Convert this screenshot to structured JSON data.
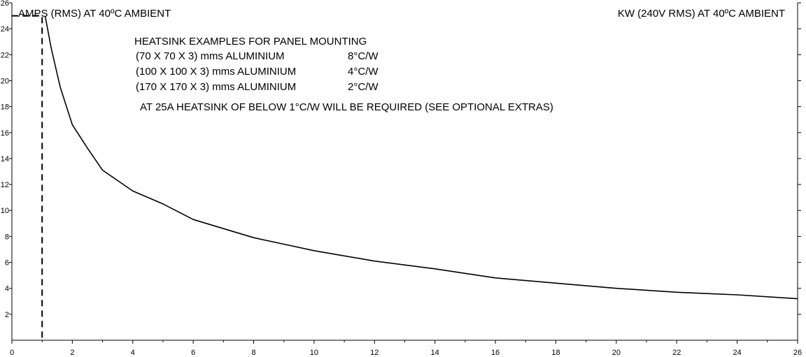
{
  "chart_data": {
    "type": "line",
    "title": "",
    "ylabel_left": "AMPS (RMS) AT 40ºC AMBIENT",
    "ylabel_right": "KW (240V RMS) AT 40ºC AMBIENT",
    "xlabel": "",
    "xlim": [
      0,
      26
    ],
    "ylim": [
      0,
      26
    ],
    "x_ticks": [
      "0",
      "2",
      "4",
      "6",
      "8",
      "10",
      "12",
      "14",
      "16",
      "18",
      "20",
      "22",
      "24",
      "26"
    ],
    "y_ticks": [
      "2",
      "4",
      "6",
      "8",
      "10",
      "12",
      "14",
      "16",
      "18",
      "20",
      "22",
      "24",
      "26"
    ],
    "grid": false,
    "annotations": [
      "HEATSINK EXAMPLES FOR PANEL MOUNTING",
      "(70 X 70 X 3) mms ALUMINIUM",
      "8°C/W",
      "(100 X 100 X 3) mms ALUMINIUM",
      "4°C/W",
      "(170 X 170 X 3) mms ALUMINIUM",
      "2°C/W",
      "AT 25A HEATSINK OF BELOW 1°C/W WILL BE REQUIRED (SEE OPTIONAL EXTRAS)"
    ],
    "series": [
      {
        "style": "solid",
        "x": [
          1.1,
          1.3,
          1.6,
          2,
          2.5,
          3,
          3.5,
          4,
          5,
          6,
          7,
          8,
          9,
          10,
          12,
          14,
          16,
          18,
          20,
          22,
          24,
          26
        ],
        "y": [
          25,
          22.5,
          19.5,
          16.6,
          14.8,
          13.1,
          12.3,
          11.5,
          10.5,
          9.3,
          8.6,
          7.9,
          7.4,
          6.9,
          6.1,
          5.5,
          4.8,
          4.4,
          4.0,
          3.7,
          3.5,
          3.2
        ]
      },
      {
        "style": "dashed",
        "x": [
          0,
          1,
          1
        ],
        "y": [
          25,
          25,
          0
        ]
      }
    ]
  }
}
